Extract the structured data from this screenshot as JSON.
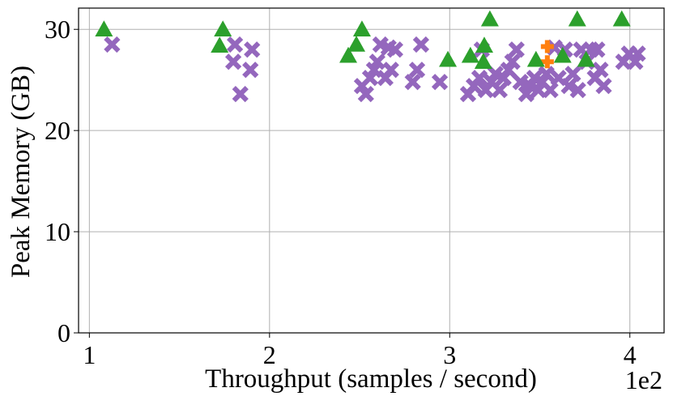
{
  "chart_data": {
    "type": "scatter",
    "x_label": "Throughput (samples / second)",
    "y_label": "Peak Memory (GB)",
    "x_offset_label": "1e2",
    "xlim": [
      94,
      419
    ],
    "ylim": [
      0,
      32.1
    ],
    "xticks": [
      {
        "value": 100,
        "label": "1"
      },
      {
        "value": 200,
        "label": "2"
      },
      {
        "value": 300,
        "label": "3"
      },
      {
        "value": 400,
        "label": "4"
      }
    ],
    "yticks": [
      0,
      10,
      20,
      30
    ],
    "grid": true,
    "series": [
      {
        "color": "#9467bd",
        "marker": "x",
        "x": [
          112.6,
          180.8,
          179.9,
          183.8,
          190.3,
          189.4,
          251.3,
          253.5,
          255.8,
          258,
          259.8,
          261.6,
          266.1,
          264.3,
          267.4,
          269.7,
          279.5,
          281.9,
          284.1,
          294.5,
          310.2,
          313.4,
          316.5,
          317.8,
          320,
          323.2,
          325.4,
          327.7,
          329.9,
          332.6,
          334.8,
          337.1,
          339.3,
          342.5,
          344.7,
          347,
          349.2,
          351.4,
          353.7,
          355.9,
          358.2,
          360.4,
          364,
          366.2,
          368.4,
          371.2,
          373,
          376.1,
          378.3,
          380.6,
          381.9,
          383.7,
          385.5,
          396.4,
          399.5,
          403,
          404.4
        ],
        "values": [
          28.5,
          28.5,
          26.8,
          23.6,
          28,
          26,
          24.4,
          23.6,
          25.2,
          26,
          26.8,
          28.5,
          28.2,
          25.2,
          26,
          28,
          24.8,
          26,
          28.5,
          24.8,
          23.6,
          24.4,
          25.2,
          28,
          24,
          24.8,
          25.6,
          24,
          25.2,
          26,
          26.8,
          28,
          24.8,
          23.6,
          24.4,
          25.2,
          24,
          24.8,
          25.6,
          24,
          28.2,
          25.2,
          28,
          24.4,
          25.6,
          24,
          28,
          26.8,
          28,
          25.2,
          28,
          26,
          24.4,
          26.8,
          27.6,
          26.8,
          27.6
        ]
      },
      {
        "color": "#ff7f0e",
        "marker": "plus",
        "x": [
          354.2,
          354.2
        ],
        "values": [
          28.3,
          26.8
        ]
      },
      {
        "color": "#2ca02c",
        "marker": "triangle",
        "x": [
          108.1,
          174.1,
          172.3,
          243.7,
          248.2,
          251.3,
          299,
          311.5,
          319.2,
          318.7,
          322.3,
          347.9,
          362.7,
          370.8,
          375.7,
          395.5
        ],
        "values": [
          30,
          30,
          28.4,
          27.4,
          28.5,
          30,
          27,
          27.4,
          28.4,
          26.8,
          31,
          27,
          27.4,
          31,
          27,
          31
        ]
      }
    ]
  }
}
